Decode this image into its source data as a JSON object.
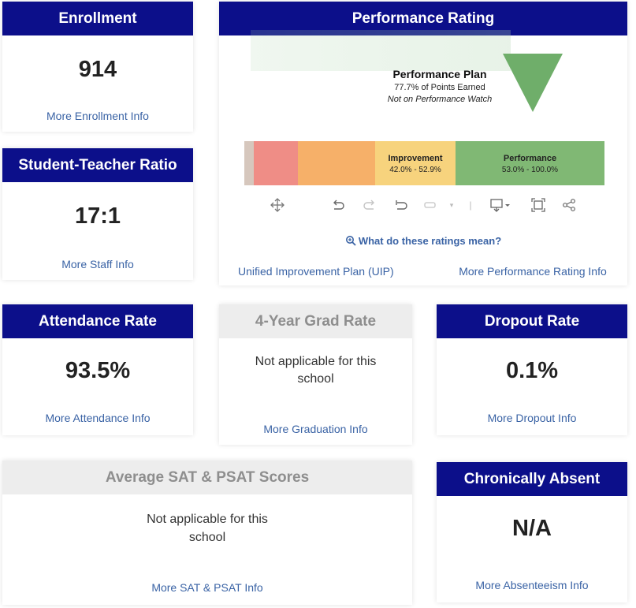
{
  "enrollment": {
    "title": "Enrollment",
    "value": "914",
    "link": "More Enrollment Info"
  },
  "ratio": {
    "title": "Student-Teacher Ratio",
    "value": "17:1",
    "link": "More Staff Info"
  },
  "performance": {
    "title": "Performance Rating",
    "plan_title": "Performance Plan",
    "plan_points": "77.7% of Points Earned",
    "plan_watch": "Not on Performance Watch",
    "segments": [
      {
        "name": "",
        "range": "",
        "color": "#d6c7bd"
      },
      {
        "name": "",
        "range": "",
        "color": "#ef8d86"
      },
      {
        "name": "",
        "range": "",
        "color": "#f6b069"
      },
      {
        "name": "Improvement",
        "range": "42.0% - 52.9%",
        "color": "#f7d37d"
      },
      {
        "name": "Performance",
        "range": "53.0% - 100.0%",
        "color": "#80b874"
      }
    ],
    "toolbar_icons": [
      "move-icon",
      "undo-icon",
      "redo-icon",
      "revert-icon",
      "pause-icon",
      "dropdown-icon",
      "download-icon",
      "fullscreen-icon",
      "share-icon"
    ],
    "ratings_link": "What do these ratings mean?",
    "uip_link": "Unified Improvement Plan (UIP)",
    "more_link": "More Performance Rating Info",
    "marker_color": "#6fae6a"
  },
  "attendance": {
    "title": "Attendance Rate",
    "value": "93.5%",
    "link": "More Attendance Info"
  },
  "grad": {
    "title": "4-Year Grad Rate",
    "na_line1": "Not applicable for this",
    "na_line2": "school",
    "link": "More Graduation Info"
  },
  "dropout": {
    "title": "Dropout Rate",
    "value": "0.1%",
    "link": "More Dropout Info"
  },
  "sat": {
    "title": "Average SAT & PSAT Scores",
    "na_line1": "Not applicable for this",
    "na_line2": "school",
    "link": "More SAT & PSAT Info"
  },
  "absent": {
    "title": "Chronically Absent",
    "value": "N/A",
    "link": "More Absenteeism Info"
  }
}
